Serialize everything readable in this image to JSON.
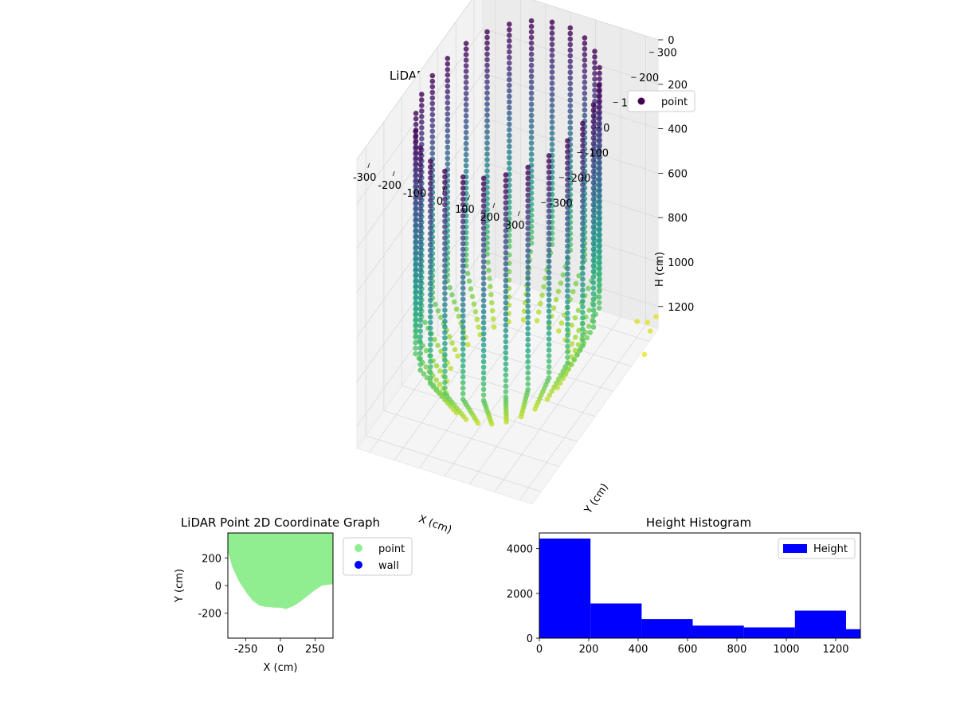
{
  "chart_data": [
    {
      "type": "scatter",
      "projection": "3d",
      "title": "LiDAR Point 3D Coordinate Graph",
      "xlabel": "X (cm)",
      "ylabel": "Y (cm)",
      "zlabel": "H (cm)",
      "x_ticks": [
        -300,
        -200,
        -100,
        0,
        100,
        200,
        300
      ],
      "y_ticks": [
        -300,
        -200,
        -100,
        0,
        100,
        200,
        300
      ],
      "z_ticks": [
        0,
        200,
        400,
        600,
        800,
        1000,
        1200
      ],
      "xlim": [
        -350,
        350
      ],
      "ylim": [
        -350,
        350
      ],
      "zlim": [
        0,
        1300
      ],
      "z_inverted": true,
      "colormap": "viridis",
      "grid": true,
      "legend": {
        "placement": "upper-right",
        "entries": [
          {
            "label": "point",
            "color": "#440154"
          }
        ]
      },
      "description_of_shape": "cylindrical wall of vertical scan columns, radius ~300 cm, H from 0 to ~1250 cm, with a few scattered points near H 1300"
    },
    {
      "type": "scatter",
      "title": "LiDAR Point 2D Coordinate Graph",
      "xlabel": "X (cm)",
      "ylabel": "Y (cm)",
      "x_ticks": [
        -250,
        0,
        250
      ],
      "y_ticks": [
        -200,
        0,
        200
      ],
      "xlim": [
        -380,
        380
      ],
      "ylim": [
        -380,
        380
      ],
      "series": [
        {
          "name": "point",
          "color": "#90ee90",
          "outline_xy": [
            [
              -380,
              250
            ],
            [
              -350,
              140
            ],
            [
              -300,
              30
            ],
            [
              -240,
              -60
            ],
            [
              -200,
              -110
            ],
            [
              -150,
              -145
            ],
            [
              -100,
              -155
            ],
            [
              -40,
              -160
            ],
            [
              0,
              -160
            ],
            [
              40,
              -170
            ],
            [
              90,
              -150
            ],
            [
              140,
              -120
            ],
            [
              190,
              -80
            ],
            [
              240,
              -40
            ],
            [
              300,
              0
            ],
            [
              380,
              10
            ]
          ]
        },
        {
          "name": "wall",
          "color": "#0000ff"
        }
      ],
      "legend": {
        "placement": "outside-right",
        "entries": [
          {
            "label": "point",
            "color": "#90ee90"
          },
          {
            "label": "wall",
            "color": "#0000ff"
          }
        ]
      }
    },
    {
      "type": "bar",
      "subtype": "histogram",
      "title": "Height Histogram",
      "x_ticks": [
        0,
        200,
        400,
        600,
        800,
        1000,
        1200
      ],
      "y_ticks": [
        0,
        2000,
        4000
      ],
      "xlim": [
        0,
        1300
      ],
      "ylim": [
        0,
        4700
      ],
      "bins": [
        {
          "x0": 0,
          "x1": 207,
          "value": 4450
        },
        {
          "x0": 207,
          "x1": 414,
          "value": 1550
        },
        {
          "x0": 414,
          "x1": 621,
          "value": 850
        },
        {
          "x0": 621,
          "x1": 828,
          "value": 560
        },
        {
          "x0": 828,
          "x1": 1035,
          "value": 480
        },
        {
          "x0": 1035,
          "x1": 1242,
          "value": 1230
        },
        {
          "x0": 1242,
          "x1": 1300,
          "value": 400
        }
      ],
      "color": "#0000ff",
      "legend": {
        "placement": "upper-right",
        "entries": [
          {
            "label": "Height",
            "color": "#0000ff"
          }
        ]
      }
    }
  ]
}
